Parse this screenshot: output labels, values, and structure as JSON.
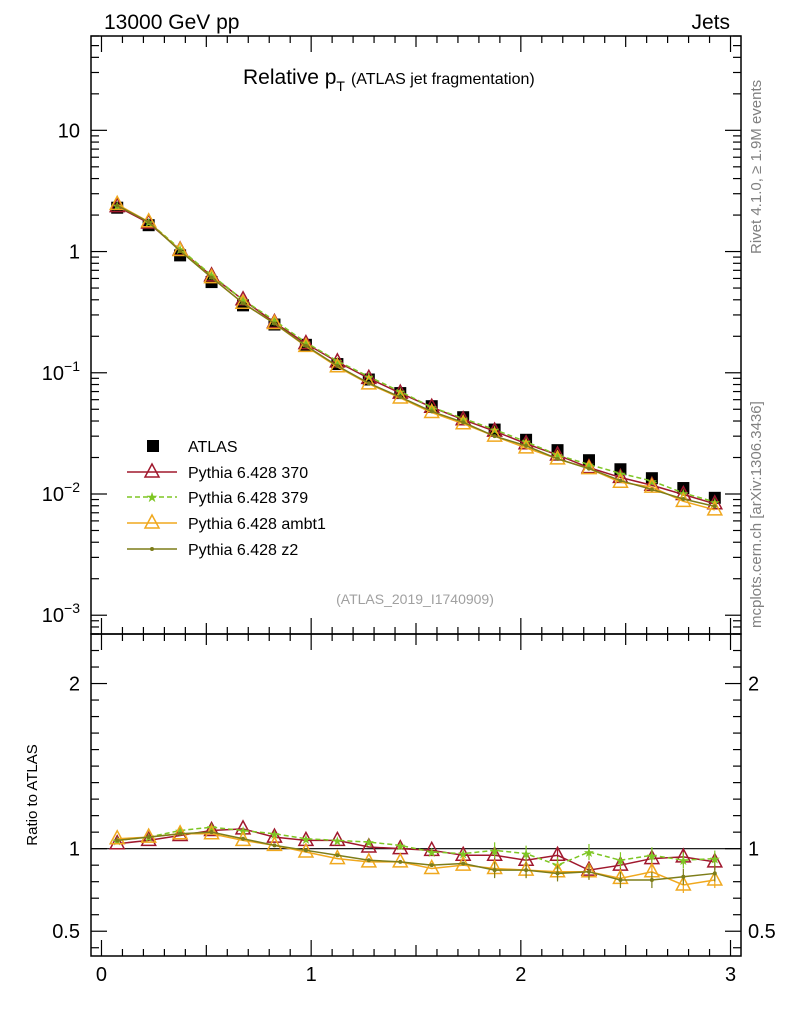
{
  "header": {
    "left": "13000 GeV pp",
    "right": "Jets"
  },
  "side_text": {
    "rivet": "Rivet 4.1.0, ≥ 1.9M events",
    "mcplots": "mcplots.cern.ch [arXiv:1306.3436]"
  },
  "title": {
    "main": "Relative p",
    "sub": "T",
    "paren": "(ATLAS jet fragmentation)"
  },
  "watermark": "(ATLAS_2019_I1740909)",
  "ratio_ylabel": "Ratio to ATLAS",
  "legend": [
    "ATLAS",
    "Pythia 6.428 370",
    "Pythia 6.428 379",
    "Pythia 6.428 ambt1",
    "Pythia 6.428 z2"
  ],
  "chart_data": [
    {
      "type": "scatter",
      "panel": "main",
      "title": "Relative pT (ATLAS jet fragmentation)",
      "yscale": "log",
      "xlim": [
        -0.05,
        3.05
      ],
      "ylim": [
        0.0007,
        60
      ],
      "yticks": [
        {
          "value": 0.001,
          "base": "10",
          "exp": "−3"
        },
        {
          "value": 0.01,
          "base": "10",
          "exp": "−2"
        },
        {
          "value": 0.1,
          "base": "10",
          "exp": "−1"
        },
        {
          "value": 1,
          "label": "1"
        },
        {
          "value": 10,
          "label": "10"
        }
      ],
      "x": [
        0.075,
        0.225,
        0.375,
        0.525,
        0.675,
        0.825,
        0.975,
        1.125,
        1.275,
        1.425,
        1.575,
        1.725,
        1.875,
        2.025,
        2.175,
        2.325,
        2.475,
        2.625,
        2.775,
        2.925
      ],
      "series": [
        {
          "name": "ATLAS",
          "color": "#000000",
          "style": "data",
          "values": [
            2.3,
            1.65,
            0.93,
            0.56,
            0.36,
            0.25,
            0.17,
            0.118,
            0.088,
            0.068,
            0.053,
            0.043,
            0.034,
            0.028,
            0.023,
            0.019,
            0.016,
            0.0135,
            0.0112,
            0.0093
          ]
        },
        {
          "name": "Pythia 6.428 370",
          "color": "#a0182d",
          "style": "triangle-open",
          "values": [
            2.35,
            1.72,
            1.03,
            0.63,
            0.4,
            0.26,
            0.174,
            0.123,
            0.09,
            0.068,
            0.052,
            0.041,
            0.033,
            0.026,
            0.021,
            0.0165,
            0.0137,
            0.0118,
            0.0099,
            0.0083
          ]
        },
        {
          "name": "Pythia 6.428 379",
          "color": "#7ec623",
          "style": "star-dashed",
          "values": [
            2.4,
            1.76,
            1.05,
            0.64,
            0.4,
            0.27,
            0.178,
            0.125,
            0.093,
            0.07,
            0.052,
            0.042,
            0.034,
            0.027,
            0.021,
            0.0175,
            0.0148,
            0.0128,
            0.0102,
            0.0086
          ]
        },
        {
          "name": "Pythia 6.428 ambt1",
          "color": "#f0a81e",
          "style": "triangle-open",
          "values": [
            2.45,
            1.76,
            1.02,
            0.61,
            0.375,
            0.255,
            0.165,
            0.112,
            0.081,
            0.062,
            0.047,
            0.038,
            0.03,
            0.024,
            0.0195,
            0.0162,
            0.0125,
            0.0114,
            0.0087,
            0.0074
          ]
        },
        {
          "name": "Pythia 6.428 z2",
          "color": "#7d7d19",
          "style": "dot",
          "values": [
            2.4,
            1.75,
            1.01,
            0.61,
            0.375,
            0.255,
            0.167,
            0.114,
            0.082,
            0.063,
            0.048,
            0.039,
            0.03,
            0.025,
            0.0195,
            0.0162,
            0.0129,
            0.0109,
            0.0091,
            0.0079
          ]
        }
      ]
    },
    {
      "type": "line",
      "panel": "ratio",
      "ylabel": "Ratio to ATLAS",
      "xlabel": "",
      "xlim": [
        -0.05,
        3.05
      ],
      "ylim": [
        0.35,
        2.3
      ],
      "yticks": [
        0.5,
        1,
        2
      ],
      "xticks": [
        0,
        1,
        2,
        3
      ],
      "x": [
        0.075,
        0.225,
        0.375,
        0.525,
        0.675,
        0.825,
        0.975,
        1.125,
        1.275,
        1.425,
        1.575,
        1.725,
        1.875,
        2.025,
        2.175,
        2.325,
        2.475,
        2.625,
        2.775,
        2.925
      ],
      "series": [
        {
          "name": "Pythia 6.428 370",
          "color": "#a0182d",
          "values": [
            1.03,
            1.05,
            1.08,
            1.11,
            1.12,
            1.07,
            1.05,
            1.05,
            1.01,
            1.0,
            0.99,
            0.96,
            0.96,
            0.93,
            0.96,
            0.87,
            0.9,
            0.94,
            0.95,
            0.92
          ]
        },
        {
          "name": "Pythia 6.428 379",
          "color": "#7ec623",
          "values": [
            1.05,
            1.07,
            1.11,
            1.13,
            1.11,
            1.09,
            1.06,
            1.05,
            1.04,
            1.02,
            0.98,
            0.97,
            0.99,
            0.97,
            0.9,
            0.98,
            0.93,
            0.96,
            0.93,
            0.94
          ]
        },
        {
          "name": "Pythia 6.428 ambt1",
          "color": "#f0a81e",
          "values": [
            1.06,
            1.07,
            1.09,
            1.09,
            1.05,
            1.02,
            0.98,
            0.94,
            0.92,
            0.92,
            0.88,
            0.9,
            0.88,
            0.87,
            0.86,
            0.86,
            0.82,
            0.86,
            0.78,
            0.81
          ]
        },
        {
          "name": "Pythia 6.428 z2",
          "color": "#7d7d19",
          "values": [
            1.05,
            1.07,
            1.09,
            1.1,
            1.06,
            1.02,
            0.99,
            0.96,
            0.93,
            0.92,
            0.9,
            0.91,
            0.87,
            0.87,
            0.85,
            0.86,
            0.81,
            0.81,
            0.83,
            0.85
          ]
        }
      ]
    }
  ]
}
